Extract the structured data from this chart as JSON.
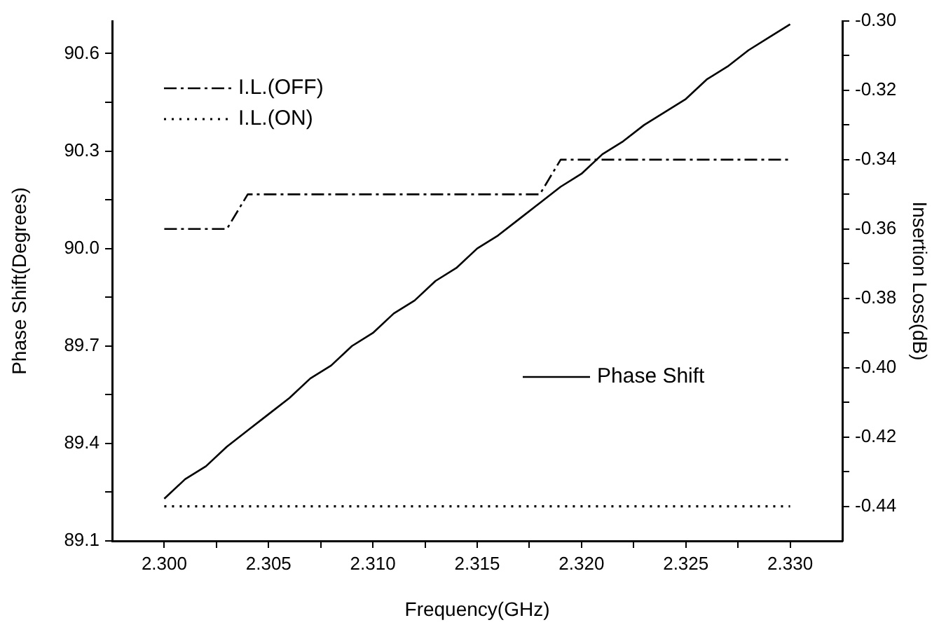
{
  "chart_data": {
    "type": "line",
    "xlabel": "Frequency(GHz)",
    "ylabel": "Phase Shift(Degrees)",
    "y2label": "Insertion Loss(dB)",
    "x": [
      2.3,
      2.301,
      2.302,
      2.303,
      2.304,
      2.305,
      2.306,
      2.307,
      2.308,
      2.309,
      2.31,
      2.311,
      2.312,
      2.313,
      2.314,
      2.315,
      2.316,
      2.317,
      2.318,
      2.319,
      2.32,
      2.321,
      2.322,
      2.323,
      2.324,
      2.325,
      2.326,
      2.327,
      2.328,
      2.329,
      2.33
    ],
    "series": [
      {
        "name": "I.L.(OFF)",
        "color": "#000000",
        "axis": "y2",
        "line_style": "dashdot",
        "x": [
          2.3,
          2.303,
          2.304,
          2.318,
          2.319,
          2.33
        ],
        "values": [
          -0.36,
          -0.36,
          -0.35,
          -0.35,
          -0.34,
          -0.34
        ]
      },
      {
        "name": "I.L.(ON)",
        "color": "#000000",
        "axis": "y2",
        "line_style": "dotted",
        "x": [
          2.3,
          2.33
        ],
        "values": [
          -0.44,
          -0.44
        ]
      },
      {
        "name": "Phase Shift",
        "color": "#000000",
        "axis": "y",
        "line_style": "solid",
        "values": [
          89.23,
          89.29,
          89.33,
          89.39,
          89.44,
          89.49,
          89.54,
          89.6,
          89.64,
          89.7,
          89.74,
          89.8,
          89.84,
          89.9,
          89.94,
          90.0,
          90.04,
          90.09,
          90.14,
          90.19,
          90.23,
          90.29,
          90.33,
          90.38,
          90.42,
          90.46,
          90.52,
          90.56,
          90.61,
          90.65,
          90.69
        ]
      }
    ],
    "xlim": [
      2.2975,
      2.3325
    ],
    "xticks": [
      {
        "value": 2.3,
        "label": "2.300"
      },
      {
        "value": 2.3025,
        "label": null
      },
      {
        "value": 2.305,
        "label": "2.305"
      },
      {
        "value": 2.3075,
        "label": null
      },
      {
        "value": 2.31,
        "label": "2.310"
      },
      {
        "value": 2.3125,
        "label": null
      },
      {
        "value": 2.315,
        "label": "2.315"
      },
      {
        "value": 2.3175,
        "label": null
      },
      {
        "value": 2.32,
        "label": "2.320"
      },
      {
        "value": 2.3225,
        "label": null
      },
      {
        "value": 2.325,
        "label": "2.325"
      },
      {
        "value": 2.3275,
        "label": null
      },
      {
        "value": 2.33,
        "label": "2.330"
      }
    ],
    "ylim": [
      89.1,
      90.7
    ],
    "yticks": [
      {
        "value": 89.1,
        "label": "89.1"
      },
      {
        "value": 89.25,
        "label": null
      },
      {
        "value": 89.4,
        "label": "89.4"
      },
      {
        "value": 89.55,
        "label": null
      },
      {
        "value": 89.7,
        "label": "89.7"
      },
      {
        "value": 89.85,
        "label": null
      },
      {
        "value": 90.0,
        "label": "90.0"
      },
      {
        "value": 90.15,
        "label": null
      },
      {
        "value": 90.3,
        "label": "90.3"
      },
      {
        "value": 90.45,
        "label": null
      },
      {
        "value": 90.6,
        "label": "90.6"
      }
    ],
    "y2lim": [
      -0.45,
      -0.3
    ],
    "y2ticks": [
      {
        "value": -0.44,
        "label": "-0.44"
      },
      {
        "value": -0.43,
        "label": null
      },
      {
        "value": -0.42,
        "label": "-0.42"
      },
      {
        "value": -0.41,
        "label": null
      },
      {
        "value": -0.4,
        "label": "-0.40"
      },
      {
        "value": -0.39,
        "label": null
      },
      {
        "value": -0.38,
        "label": "-0.38"
      },
      {
        "value": -0.37,
        "label": null
      },
      {
        "value": -0.36,
        "label": "-0.36"
      },
      {
        "value": -0.35,
        "label": null
      },
      {
        "value": -0.34,
        "label": "-0.34"
      },
      {
        "value": -0.33,
        "label": null
      },
      {
        "value": -0.32,
        "label": "-0.32"
      },
      {
        "value": -0.31,
        "label": null
      },
      {
        "value": -0.3,
        "label": "-0.30"
      }
    ],
    "grid": false,
    "legend": "top left",
    "marker": "none"
  }
}
